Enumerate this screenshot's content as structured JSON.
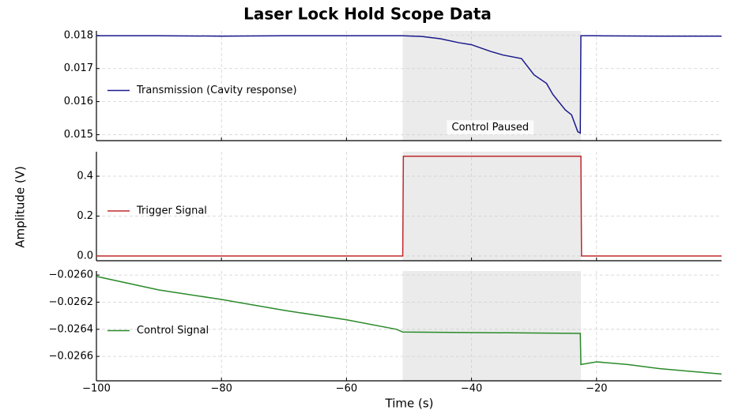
{
  "title": "Laser Lock Hold Scope Data",
  "xlabel": "Time (s)",
  "ylabel": "Amplitude (V)",
  "chart_data": [
    {
      "type": "line",
      "xlim": [
        -100,
        0
      ],
      "ylim": [
        0.01482,
        0.01814
      ],
      "xticks": [
        {
          "value": -100,
          "label": "−100"
        },
        {
          "value": -80,
          "label": "−80"
        },
        {
          "value": -60,
          "label": "−60"
        },
        {
          "value": -40,
          "label": "−40"
        },
        {
          "value": -20,
          "label": "−20"
        }
      ],
      "yticks": [
        0.015,
        0.016,
        0.017,
        0.018
      ],
      "grid": true,
      "legend": "left",
      "span": [
        -51,
        -22.5
      ],
      "annotation": {
        "text": "Control Paused",
        "x": -37,
        "y": 0.01522
      },
      "x": [
        -100,
        -90,
        -80,
        -70,
        -60,
        -51,
        -48,
        -45,
        -42,
        -40,
        -37,
        -35,
        -32,
        -30,
        -28,
        -27,
        -25,
        -24,
        -23,
        -22.6,
        -22.5,
        -20,
        -10,
        0
      ],
      "series": [
        {
          "name": "Transmission (Cavity response)",
          "color": "#1a1a8c",
          "values": [
            0.01799,
            0.01799,
            0.01798,
            0.01799,
            0.01799,
            0.01799,
            0.01797,
            0.0179,
            0.01778,
            0.01772,
            0.01752,
            0.01741,
            0.0173,
            0.01681,
            0.01655,
            0.01622,
            0.01575,
            0.0156,
            0.01509,
            0.01505,
            0.01799,
            0.01799,
            0.01798,
            0.01798
          ]
        }
      ]
    },
    {
      "type": "line",
      "xlim": [
        -100,
        0
      ],
      "ylim": [
        -0.024,
        0.523
      ],
      "xticks": [
        {
          "value": -100,
          "label": "−100"
        },
        {
          "value": -80,
          "label": "−80"
        },
        {
          "value": -60,
          "label": "−60"
        },
        {
          "value": -40,
          "label": "−40"
        },
        {
          "value": -20,
          "label": "−20"
        }
      ],
      "yticks": [
        {
          "value": 0,
          "label": "0.0"
        },
        0.2,
        0.4
      ],
      "grid": true,
      "legend": "left",
      "span": [
        -51,
        -22.5
      ],
      "x": [
        -100,
        -51,
        -50.9,
        -22.5,
        -22.4,
        0
      ],
      "series": [
        {
          "name": "Trigger Signal",
          "color": "#c0282d",
          "values": [
            0,
            0,
            0.5,
            0.5,
            0,
            0
          ]
        }
      ]
    },
    {
      "type": "line",
      "xlim": [
        -100,
        0
      ],
      "ylim": [
        -0.02678,
        -0.02597
      ],
      "xticks": [
        {
          "value": -100,
          "label": "−100"
        },
        {
          "value": -80,
          "label": "−80"
        },
        {
          "value": -60,
          "label": "−60"
        },
        {
          "value": -40,
          "label": "−40"
        },
        {
          "value": -20,
          "label": "−20"
        }
      ],
      "yticks": [
        {
          "value": -0.026,
          "label": "−0.0260"
        },
        {
          "value": -0.0262,
          "label": "−0.0262"
        },
        {
          "value": -0.0264,
          "label": "−0.0264"
        },
        {
          "value": -0.0266,
          "label": "−0.0266"
        }
      ],
      "grid": true,
      "legend": "left",
      "span": [
        -51,
        -22.5
      ],
      "x": [
        -100,
        -90,
        -80,
        -70,
        -60,
        -52,
        -51,
        -22.6,
        -22.5,
        -20,
        -15,
        -10,
        -5,
        0
      ],
      "series": [
        {
          "name": "Control Signal",
          "color": "#2a8a2a",
          "values": [
            -0.02601,
            -0.02611,
            -0.02618,
            -0.02626,
            -0.02633,
            -0.0264,
            -0.02642,
            -0.02643,
            -0.02666,
            -0.02664,
            -0.02666,
            -0.02669,
            -0.02671,
            -0.02673
          ]
        }
      ]
    }
  ]
}
